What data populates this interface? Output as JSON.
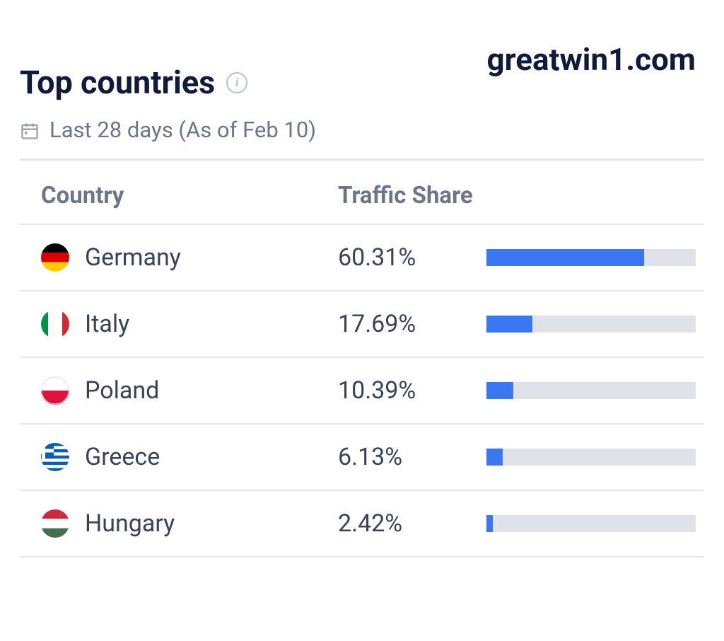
{
  "site_name": "greatwin1.com",
  "header": {
    "title": "Top countries",
    "date_range": "Last 28 days (As of Feb 10)"
  },
  "table": {
    "columns": {
      "country": "Country",
      "traffic_share": "Traffic Share"
    },
    "bar": {
      "track_color": "#dfe3e9",
      "fill_color": "#3a78f2",
      "max_percent": 80
    },
    "rows": [
      {
        "country": "Germany",
        "percent": 60.31,
        "percent_label": "60.31%",
        "flag": "germany"
      },
      {
        "country": "Italy",
        "percent": 17.69,
        "percent_label": "17.69%",
        "flag": "italy"
      },
      {
        "country": "Poland",
        "percent": 10.39,
        "percent_label": "10.39%",
        "flag": "poland"
      },
      {
        "country": "Greece",
        "percent": 6.13,
        "percent_label": "6.13%",
        "flag": "greece"
      },
      {
        "country": "Hungary",
        "percent": 2.42,
        "percent_label": "2.42%",
        "flag": "hungary"
      }
    ]
  },
  "colors": {
    "text_primary": "#111a3a",
    "text_body": "#3a4356",
    "text_muted": "#6d7687",
    "divider": "#e4e6ea"
  }
}
